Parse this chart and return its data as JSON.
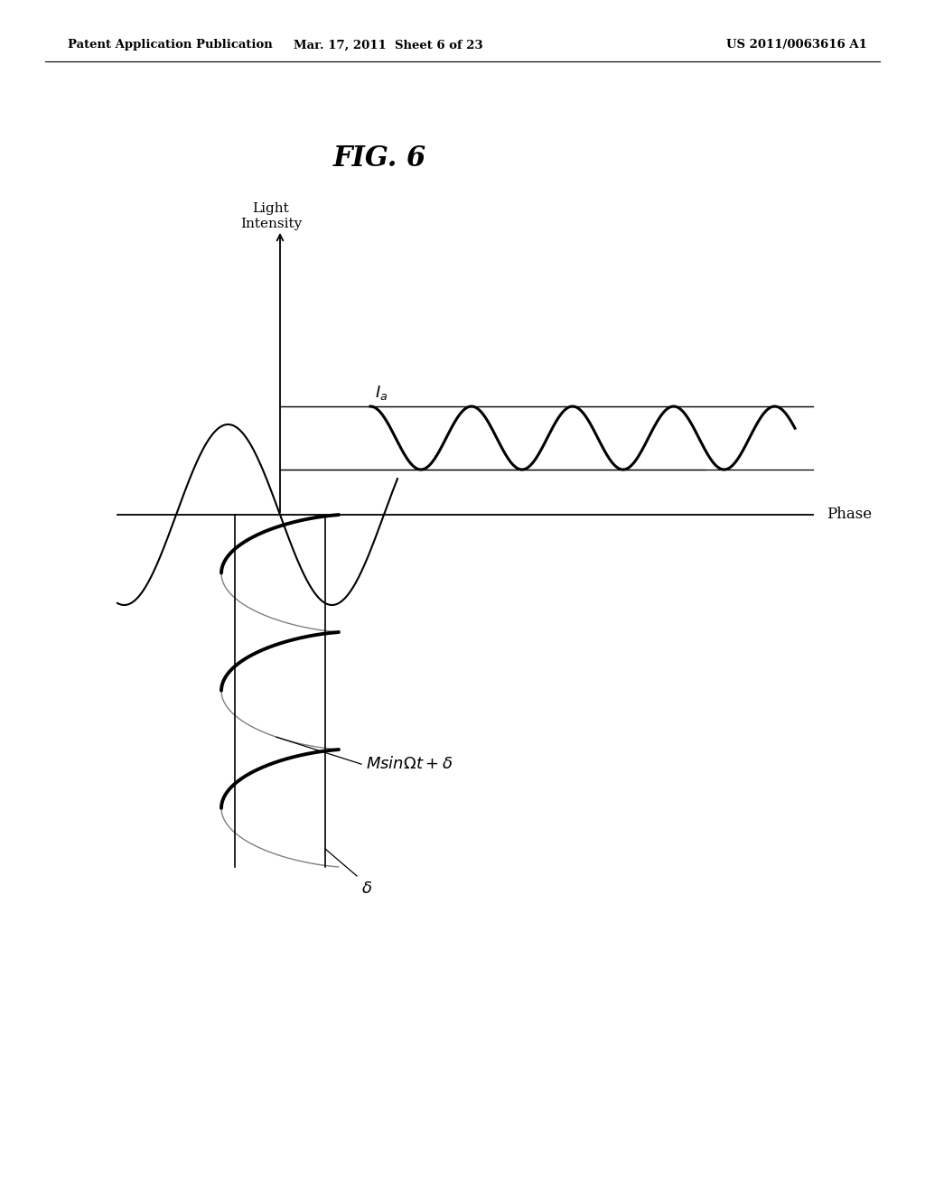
{
  "background_color": "#ffffff",
  "header_left": "Patent Application Publication",
  "header_center": "Mar. 17, 2011  Sheet 6 of 23",
  "header_right": "US 2011/0063616 A1",
  "fig_title": "FIG. 6",
  "label_light_intensity": "Light\nIntensity",
  "label_phase": "Phase",
  "label_Ia": "$I_a$",
  "label_formula": "$Msin\\Omega t+\\delta$",
  "label_delta": "$\\delta$"
}
